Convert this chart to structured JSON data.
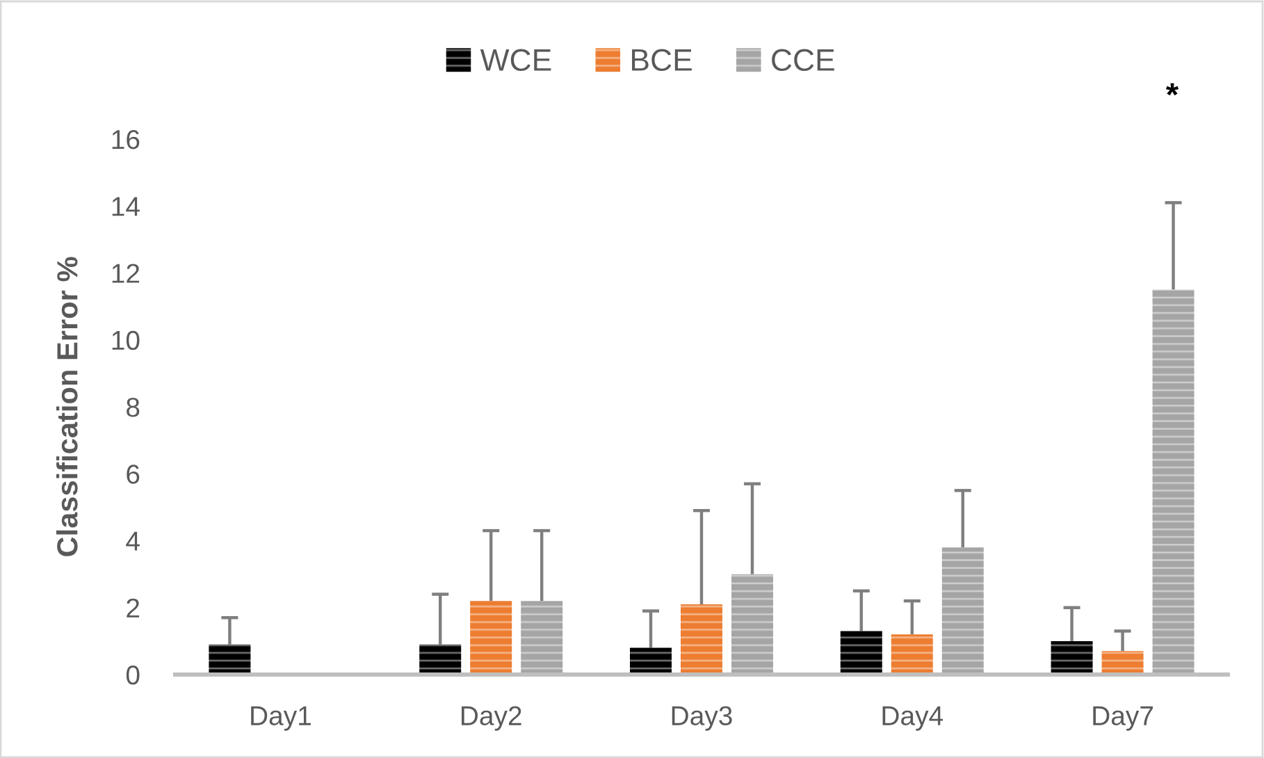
{
  "chart_data": {
    "type": "bar",
    "ylabel": "Classification Error %",
    "categories": [
      "Day1",
      "Day2",
      "Day3",
      "Day4",
      "Day7"
    ],
    "series": [
      {
        "name": "WCE",
        "color": "#000000",
        "values": [
          0.9,
          0.9,
          0.8,
          1.3,
          1.0
        ],
        "errors": [
          [
            0.9,
            1.7
          ],
          [
            0.9,
            2.4
          ],
          [
            0.8,
            1.9
          ],
          [
            1.3,
            2.5
          ],
          [
            1.0,
            2.0
          ]
        ]
      },
      {
        "name": "BCE",
        "color": "#ed7d31",
        "values": [
          null,
          2.2,
          2.1,
          1.2,
          0.7
        ],
        "errors": [
          null,
          [
            2.2,
            4.3
          ],
          [
            2.1,
            4.9
          ],
          [
            1.2,
            2.2
          ],
          [
            0.7,
            1.3
          ]
        ]
      },
      {
        "name": "CCE",
        "color": "#a5a5a5",
        "values": [
          null,
          2.2,
          3.0,
          3.8,
          11.5
        ],
        "errors": [
          null,
          [
            2.2,
            4.3
          ],
          [
            3.0,
            5.7
          ],
          [
            3.8,
            5.5
          ],
          [
            11.5,
            14.1
          ]
        ]
      }
    ],
    "ylim": [
      0,
      16
    ],
    "yticks": [
      0,
      2,
      4,
      6,
      8,
      10,
      12,
      14,
      16
    ],
    "grid": false,
    "legend": "top",
    "annotations": [
      "*"
    ]
  }
}
